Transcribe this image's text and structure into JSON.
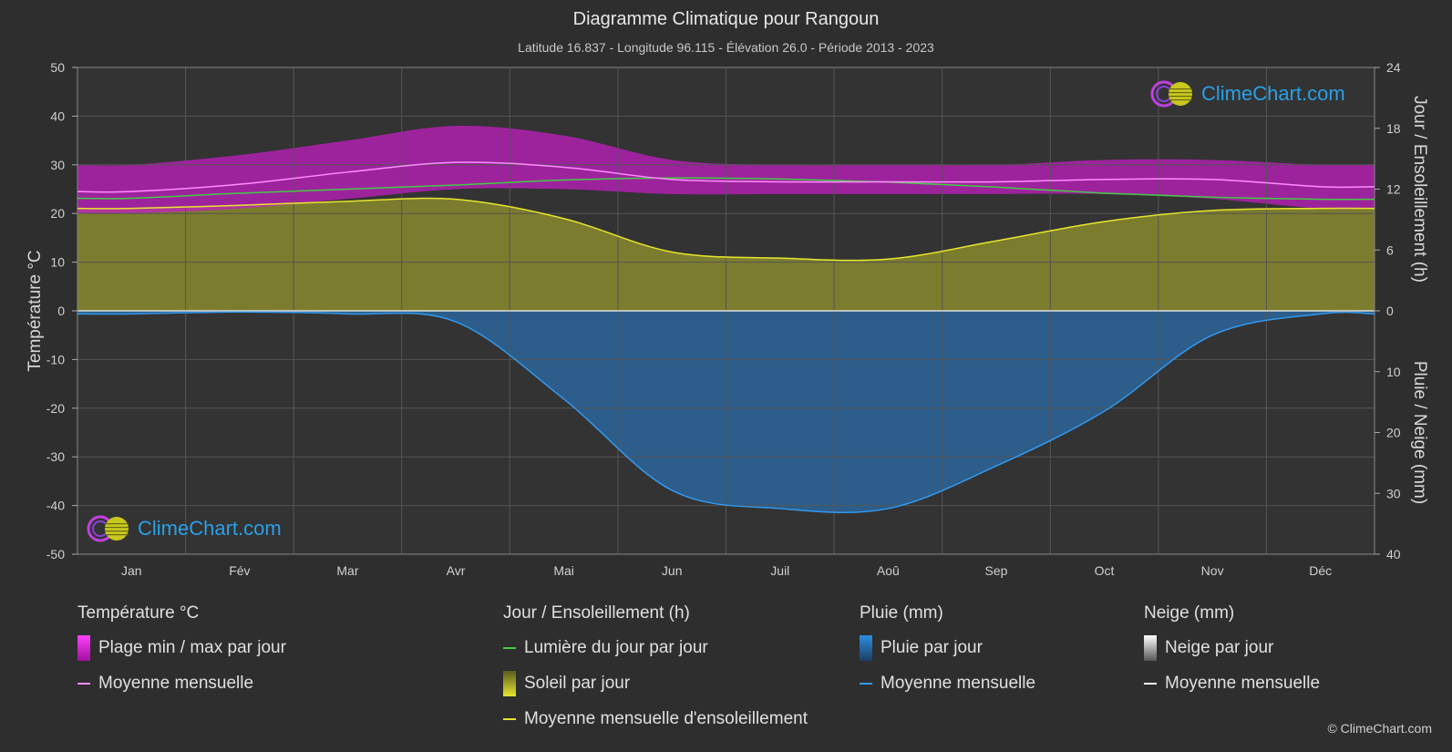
{
  "title": "Diagramme Climatique pour Rangoun",
  "subtitle": "Latitude 16.837 - Longitude 96.115 - Élévation 26.0 - Période 2013 - 2023",
  "brand": "ClimeChart.com",
  "copyright": "© ClimeChart.com",
  "colors": {
    "background": "#2e2e2e",
    "grid": "#555555",
    "temp_range": "#c21fc2",
    "temp_mean": "#ff8cff",
    "daylight": "#44cc44",
    "sunshine_fill": "#8a8a2e",
    "sunshine_mean": "#e6e62e",
    "rain": "#2a6fb0",
    "rain_mean": "#3399ee",
    "snow_mean": "#ffffff",
    "brand": "#2aa0e8"
  },
  "legend": {
    "temperature": {
      "header": "Température °C",
      "range_label": "Plage min / max par jour",
      "mean_label": "Moyenne mensuelle"
    },
    "sun": {
      "header": "Jour / Ensoleillement (h)",
      "daylight_label": "Lumière du jour par jour",
      "sunshine_label": "Soleil par jour",
      "sunshine_mean_label": "Moyenne mensuelle d'ensoleillement"
    },
    "rain": {
      "header": "Pluie (mm)",
      "daily_label": "Pluie par jour",
      "mean_label": "Moyenne mensuelle"
    },
    "snow": {
      "header": "Neige (mm)",
      "daily_label": "Neige par jour",
      "mean_label": "Moyenne mensuelle"
    }
  },
  "chart_data": {
    "type": "line",
    "categories": [
      "Jan",
      "Fév",
      "Mar",
      "Avr",
      "Mai",
      "Jun",
      "Juil",
      "Aoû",
      "Sep",
      "Oct",
      "Nov",
      "Déc"
    ],
    "y_left": {
      "label": "Température °C",
      "range": [
        -50,
        50
      ],
      "ticks": [
        50,
        40,
        30,
        20,
        10,
        0,
        -10,
        -20,
        -30,
        -40,
        -50
      ]
    },
    "y_right_top": {
      "label": "Jour / Ensoleillement (h)",
      "range": [
        0,
        24
      ],
      "ticks": [
        24,
        18,
        12,
        6,
        0
      ]
    },
    "y_right_bottom": {
      "label": "Pluie / Neige (mm)",
      "range": [
        0,
        40
      ],
      "ticks": [
        10,
        20,
        30,
        40
      ]
    },
    "grid": true,
    "series": [
      {
        "name": "Plage min / max par jour",
        "unit": "°C",
        "min": [
          20,
          21,
          23,
          25,
          25,
          24,
          24,
          24,
          24,
          24,
          23,
          21
        ],
        "max": [
          30,
          32,
          35,
          38,
          36,
          31,
          30,
          30,
          30,
          31,
          31,
          30
        ]
      },
      {
        "name": "Moyenne mensuelle",
        "unit": "°C",
        "values": [
          24.5,
          26,
          28.5,
          30.5,
          29.5,
          27,
          26.5,
          26.5,
          26.5,
          27,
          27,
          25.5
        ]
      },
      {
        "name": "Lumière du jour par jour",
        "unit": "h",
        "values": [
          11.1,
          11.6,
          12.0,
          12.4,
          12.9,
          13.1,
          13.0,
          12.7,
          12.2,
          11.6,
          11.2,
          11.0
        ]
      },
      {
        "name": "Soleil par jour",
        "unit": "h",
        "values": [
          10.1,
          10.4,
          10.8,
          11.0,
          9.1,
          5.8,
          5.2,
          5.1,
          6.9,
          8.8,
          9.9,
          10.1
        ]
      },
      {
        "name": "Moyenne mensuelle d'ensoleillement",
        "unit": "h",
        "values": [
          10.1,
          10.4,
          10.8,
          11.0,
          9.1,
          5.8,
          5.2,
          5.1,
          6.9,
          8.8,
          9.9,
          10.1
        ]
      },
      {
        "name": "Pluie par jour",
        "unit": "mm",
        "values": [
          0.5,
          0.2,
          0.5,
          1.8,
          14.5,
          29.5,
          32.5,
          32.5,
          25.5,
          16.5,
          4.0,
          0.5
        ]
      },
      {
        "name": "Moyenne mensuelle",
        "unit": "mm",
        "values": [
          0.5,
          0.2,
          0.5,
          1.8,
          14.5,
          29.5,
          32.5,
          32.5,
          25.5,
          16.5,
          4.0,
          0.5
        ]
      }
    ]
  }
}
